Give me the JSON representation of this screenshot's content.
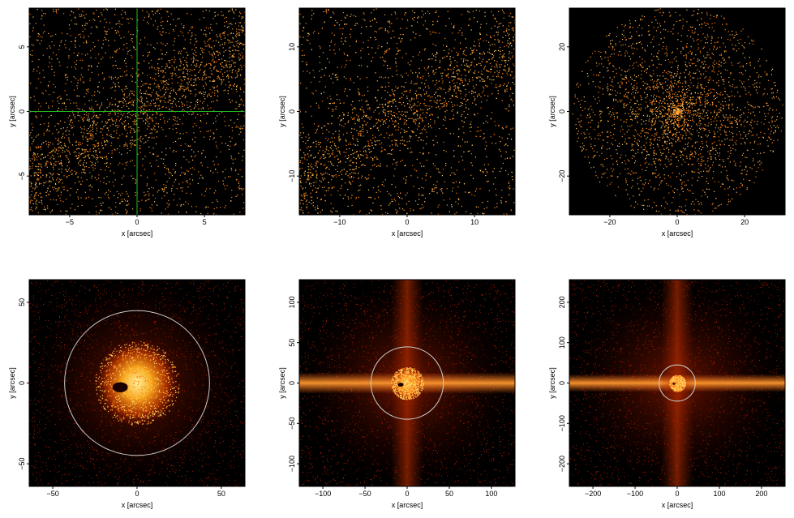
{
  "chart_data": [
    {
      "type": "scatter",
      "xlabel": "x [arcsec]",
      "ylabel": "y [arcsec]",
      "xlim": [
        -8,
        8
      ],
      "ylim": [
        -8,
        8
      ],
      "xticks": [
        -5,
        0,
        5
      ],
      "yticks": [
        -5,
        0,
        5
      ],
      "crosshair": {
        "x": 0,
        "y": 0,
        "color": "#22bb22"
      },
      "background": "#000000",
      "point_colors": [
        "#ff9933",
        "#ffcc66",
        "#ff7700"
      ]
    },
    {
      "type": "scatter",
      "xlabel": "x [arcsec]",
      "ylabel": "y [arcsec]",
      "xlim": [
        -16,
        16
      ],
      "ylim": [
        -16,
        16
      ],
      "xticks": [
        -10,
        0,
        10
      ],
      "yticks": [
        -10,
        0,
        10
      ],
      "background": "#000000",
      "point_colors": [
        "#ff9933",
        "#ffcc66",
        "#ff7700"
      ]
    },
    {
      "type": "scatter",
      "xlabel": "x [arcsec]",
      "ylabel": "y [arcsec]",
      "xlim": [
        -32,
        32
      ],
      "ylim": [
        -32,
        32
      ],
      "xticks": [
        -20,
        0,
        20
      ],
      "yticks": [
        -20,
        0,
        20
      ],
      "background": "#000000",
      "point_colors": [
        "#ff9933",
        "#ffcc66",
        "#ff7700"
      ]
    },
    {
      "type": "heatmap",
      "xlabel": "x [arcsec]",
      "ylabel": "y [arcsec]",
      "xlim": [
        -64,
        64
      ],
      "ylim": [
        -64,
        64
      ],
      "xticks": [
        -50,
        0,
        50
      ],
      "yticks": [
        -50,
        0,
        50
      ],
      "circle": {
        "cx": 0,
        "cy": 0,
        "r": 43,
        "color": "#cccccc"
      },
      "background": "#000000"
    },
    {
      "type": "heatmap",
      "xlabel": "x [arcsec]",
      "ylabel": "y [arcsec]",
      "xlim": [
        -128,
        128
      ],
      "ylim": [
        -128,
        128
      ],
      "xticks": [
        -100,
        -50,
        0,
        50,
        100
      ],
      "yticks": [
        -100,
        -50,
        0,
        50,
        100
      ],
      "circle": {
        "cx": 0,
        "cy": 0,
        "r": 43,
        "color": "#cccccc"
      },
      "background": "#000000"
    },
    {
      "type": "heatmap",
      "xlabel": "x [arcsec]",
      "ylabel": "y [arcsec]",
      "xlim": [
        -256,
        256
      ],
      "ylim": [
        -256,
        256
      ],
      "xticks": [
        -200,
        -100,
        0,
        100,
        200
      ],
      "yticks": [
        -200,
        -100,
        0,
        100,
        200
      ],
      "circle": {
        "cx": 0,
        "cy": 0,
        "r": 43,
        "color": "#cccccc"
      },
      "background": "#000000"
    }
  ]
}
